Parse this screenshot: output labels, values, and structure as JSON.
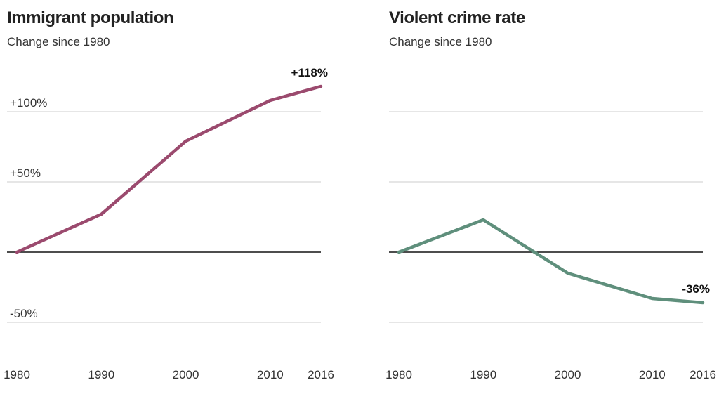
{
  "chart_data": [
    {
      "type": "line",
      "title": "Immigrant population",
      "subtitle": "Change since 1980",
      "x": [
        1980,
        1990,
        2000,
        2010,
        2016
      ],
      "series": [
        {
          "values": [
            0,
            27,
            79,
            108,
            118
          ],
          "color": "#9b4a6e"
        }
      ],
      "end_label": "+118%",
      "x_ticks": [
        "1980",
        "1990",
        "2000",
        "2010",
        "2016"
      ],
      "y_ticks": [
        {
          "value": 100,
          "label": "+100%"
        },
        {
          "value": 50,
          "label": "+50%"
        },
        {
          "value": 0,
          "label": ""
        },
        {
          "value": -50,
          "label": "-50%"
        }
      ],
      "ylim": [
        -72,
        150
      ],
      "grid": true,
      "legend": "none"
    },
    {
      "type": "line",
      "title": "Violent crime rate",
      "subtitle": "Change since 1980",
      "x": [
        1980,
        1990,
        2000,
        2010,
        2016
      ],
      "series": [
        {
          "values": [
            0,
            23,
            -15,
            -33,
            -36
          ],
          "color": "#5f8f7c"
        }
      ],
      "end_label": "-36%",
      "x_ticks": [
        "1980",
        "1990",
        "2000",
        "2010",
        "2016"
      ],
      "y_ticks": [
        {
          "value": 100,
          "label": ""
        },
        {
          "value": 50,
          "label": ""
        },
        {
          "value": 0,
          "label": ""
        },
        {
          "value": -50,
          "label": ""
        }
      ],
      "ylim": [
        -72,
        150
      ],
      "grid": true,
      "legend": "none"
    }
  ]
}
